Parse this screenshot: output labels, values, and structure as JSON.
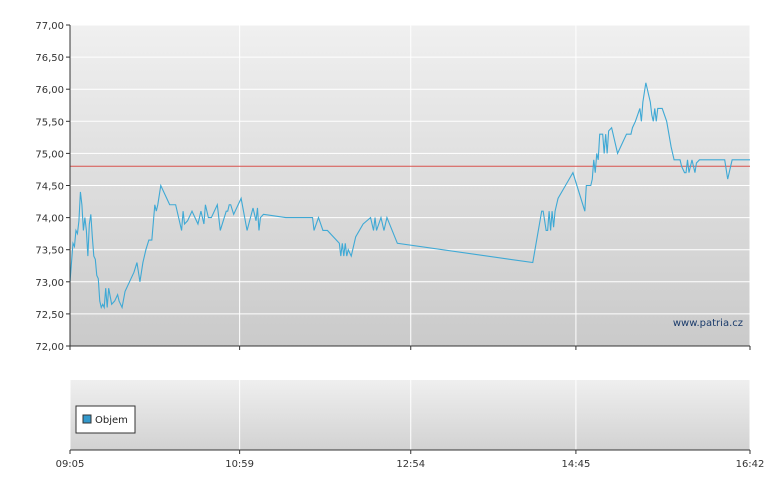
{
  "colors": {
    "line": "#3fa9d5",
    "reference": "#d9534f",
    "volume_swatch": "#3399cc"
  },
  "chart_data": [
    {
      "type": "line",
      "title": "",
      "xlabel": "",
      "ylabel": "",
      "ylim": [
        72.0,
        77.0
      ],
      "xlim": [
        "09:05",
        "16:42"
      ],
      "y_ticks": [
        "72,00",
        "72,50",
        "73,00",
        "73,50",
        "74,00",
        "74,50",
        "75,00",
        "75,50",
        "76,00",
        "76,50",
        "77,00"
      ],
      "x_ticks": [
        "09:05",
        "10:59",
        "12:54",
        "14:45",
        "16:42"
      ],
      "grid": true,
      "watermark": "www.patria.cz",
      "reference_line": 74.8,
      "series": [
        {
          "x": [
            "09:05",
            "09:06",
            "09:07",
            "09:08",
            "09:09",
            "09:10",
            "09:11",
            "09:12",
            "09:13",
            "09:14",
            "09:15",
            "09:16",
            "09:17",
            "09:18",
            "09:19",
            "09:20",
            "09:21",
            "09:22",
            "09:23",
            "09:24",
            "09:25",
            "09:26",
            "09:27",
            "09:28",
            "09:29",
            "09:30",
            "09:31",
            "09:33",
            "09:35",
            "09:37",
            "09:38",
            "09:40",
            "09:42",
            "09:45",
            "09:48",
            "09:50",
            "09:52",
            "09:54",
            "09:56",
            "09:58",
            "10:00",
            "10:02",
            "10:03",
            "10:04",
            "10:06",
            "10:09",
            "10:12",
            "10:16",
            "10:20",
            "10:21",
            "10:22",
            "10:24",
            "10:27",
            "10:29",
            "10:31",
            "10:33",
            "10:35",
            "10:36",
            "10:38",
            "10:40",
            "10:44",
            "10:46",
            "10:48",
            "10:50",
            "10:51",
            "10:52",
            "10:53",
            "10:55",
            "11:00",
            "11:04",
            "11:08",
            "11:10",
            "11:11",
            "11:12",
            "11:13",
            "11:15",
            "11:30",
            "11:48",
            "11:49",
            "11:52",
            "11:55",
            "11:58",
            "12:06",
            "12:07",
            "12:08",
            "12:09",
            "12:10",
            "12:11",
            "12:12",
            "12:14",
            "12:17",
            "12:22",
            "12:27",
            "12:29",
            "12:30",
            "12:31",
            "12:34",
            "12:36",
            "12:38",
            "12:45",
            "14:16",
            "14:22",
            "14:23",
            "14:25",
            "14:26",
            "14:27",
            "14:28",
            "14:29",
            "14:30",
            "14:31",
            "14:32",
            "14:33",
            "14:38",
            "14:43",
            "14:51",
            "14:52",
            "14:53",
            "14:55",
            "14:56",
            "14:57",
            "14:58",
            "14:59",
            "15:00",
            "15:01",
            "15:03",
            "15:04",
            "15:05",
            "15:06",
            "15:07",
            "15:09",
            "15:10",
            "15:13",
            "15:19",
            "15:22",
            "15:23",
            "15:25",
            "15:28",
            "15:29",
            "15:30",
            "15:32",
            "15:34",
            "15:35",
            "15:36",
            "15:37",
            "15:38",
            "15:39",
            "15:40",
            "15:43",
            "15:46",
            "15:49",
            "15:51",
            "15:55",
            "15:56",
            "15:58",
            "15:59",
            "16:00",
            "16:01",
            "16:03",
            "16:05",
            "16:06",
            "16:08",
            "16:11",
            "16:14",
            "16:17",
            "16:18",
            "16:20",
            "16:22",
            "16:24",
            "16:25",
            "16:27",
            "16:30",
            "16:33",
            "16:35",
            "16:42"
          ],
          "values": [
            73.0,
            73.3,
            73.6,
            73.55,
            73.8,
            73.75,
            73.95,
            74.4,
            74.2,
            73.8,
            74.0,
            73.8,
            73.4,
            73.9,
            74.05,
            73.7,
            73.4,
            73.35,
            73.1,
            73.05,
            72.7,
            72.6,
            72.65,
            72.6,
            72.9,
            72.6,
            72.9,
            72.65,
            72.7,
            72.8,
            72.7,
            72.6,
            72.85,
            73.0,
            73.15,
            73.3,
            73.0,
            73.3,
            73.5,
            73.65,
            73.65,
            74.2,
            74.1,
            74.2,
            74.5,
            74.35,
            74.2,
            74.2,
            73.8,
            74.1,
            73.9,
            73.95,
            74.1,
            74.0,
            73.9,
            74.1,
            73.9,
            74.2,
            74.0,
            74.0,
            74.2,
            73.8,
            73.95,
            74.1,
            74.1,
            74.2,
            74.2,
            74.05,
            74.3,
            73.8,
            74.15,
            73.95,
            74.15,
            73.8,
            74.0,
            74.05,
            74.0,
            74.0,
            73.8,
            74.0,
            73.8,
            73.8,
            73.6,
            73.4,
            73.6,
            73.4,
            73.6,
            73.4,
            73.5,
            73.4,
            73.7,
            73.9,
            74.0,
            73.8,
            74.0,
            73.8,
            74.0,
            73.8,
            74.0,
            73.6,
            73.3,
            74.1,
            74.1,
            73.8,
            73.8,
            74.1,
            73.8,
            74.1,
            73.85,
            74.1,
            74.2,
            74.3,
            74.5,
            74.7,
            74.1,
            74.5,
            74.5,
            74.5,
            74.6,
            74.9,
            74.7,
            75.0,
            74.9,
            75.3,
            75.3,
            75.0,
            75.3,
            75.0,
            75.35,
            75.4,
            75.3,
            75.0,
            75.3,
            75.3,
            75.4,
            75.5,
            75.7,
            75.5,
            75.8,
            76.1,
            75.9,
            75.8,
            75.6,
            75.5,
            75.7,
            75.5,
            75.7,
            75.7,
            75.5,
            75.1,
            74.9,
            74.9,
            74.8,
            74.7,
            74.7,
            74.9,
            74.7,
            74.9,
            74.7,
            74.85,
            74.9,
            74.9,
            74.9,
            74.9,
            74.9,
            74.9,
            74.9,
            74.9,
            74.9,
            74.6,
            74.9,
            74.9,
            74.9,
            74.9
          ]
        }
      ]
    },
    {
      "type": "bar",
      "title": "",
      "xlabel": "",
      "ylabel": "",
      "legend_placement": "top-left",
      "series": [
        {
          "name": "Objem",
          "values": []
        }
      ]
    }
  ]
}
